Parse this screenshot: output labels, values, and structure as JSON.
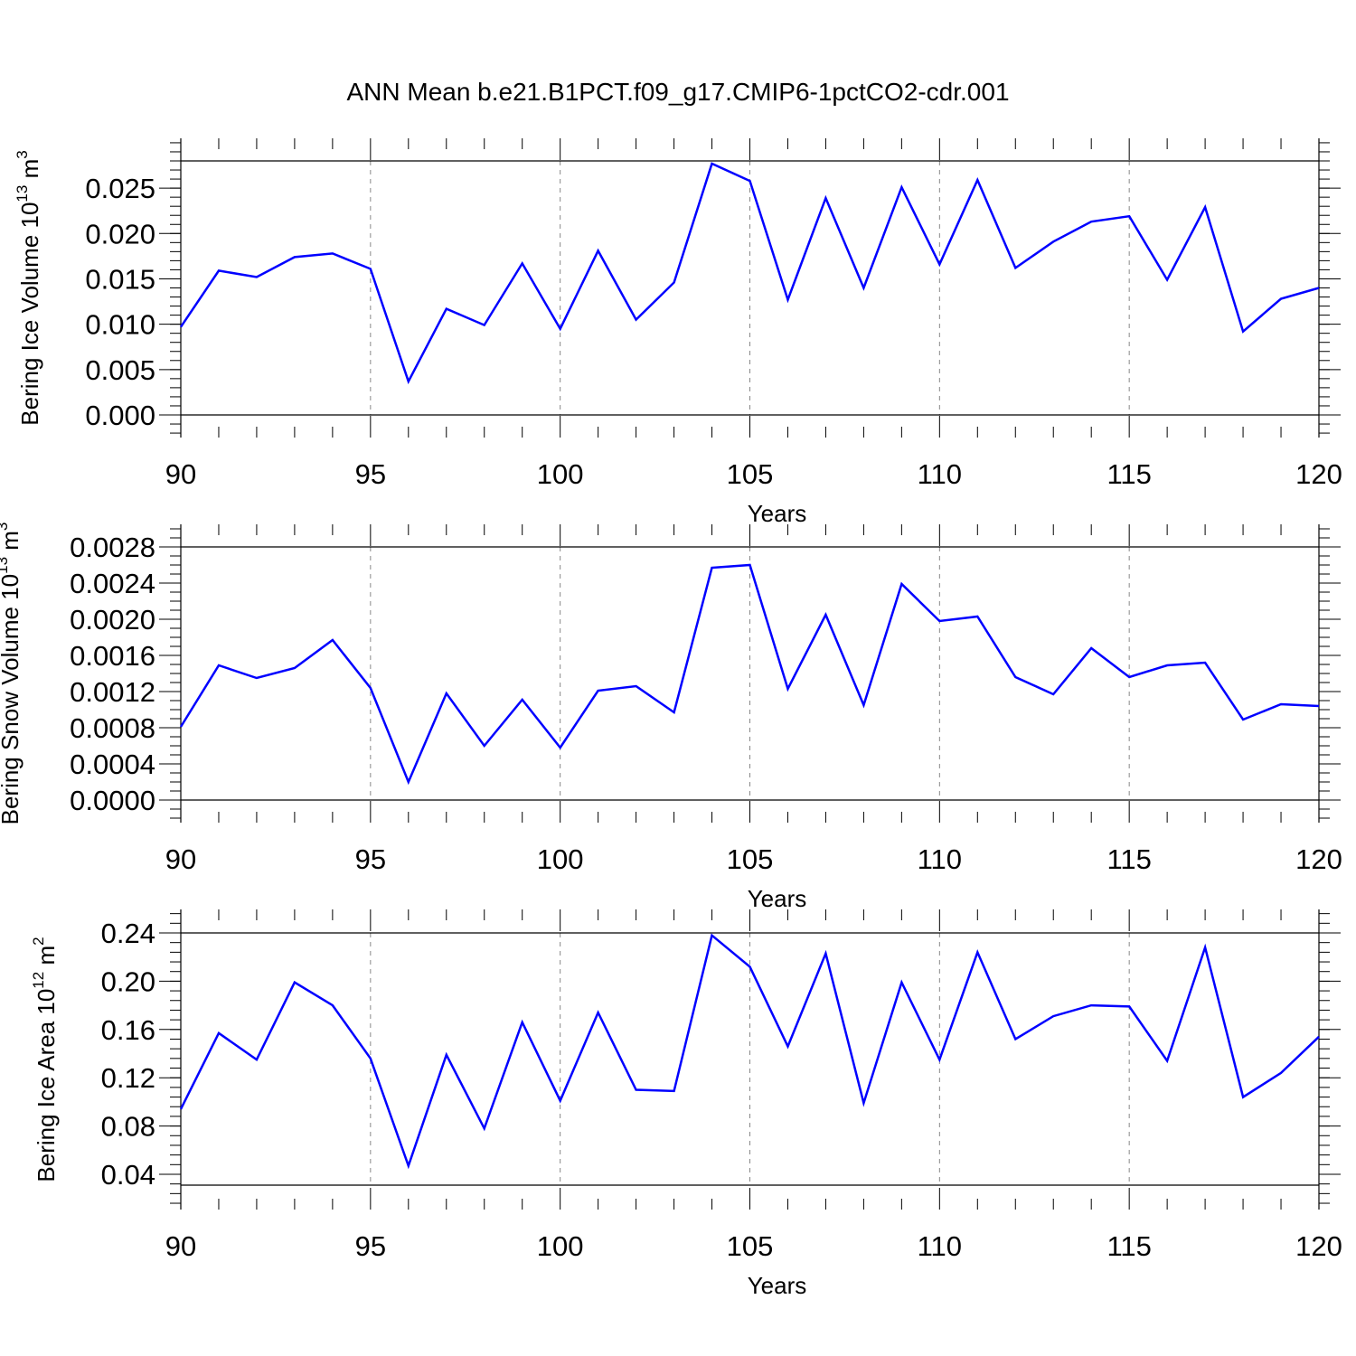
{
  "title": "ANN Mean b.e21.B1PCT.f09_g17.CMIP6-1pctCO2-cdr.001",
  "colors": {
    "series": "#0000ff",
    "axis": "#000000",
    "grid": "#888888"
  },
  "chart_data": [
    {
      "type": "line",
      "name": "ice-volume",
      "ylabel_main": "Bering Ice Volume 10",
      "ylabel_exp": "13",
      "ylabel_unit": " m",
      "ylabel_unit_exp": "3",
      "xlabel": "Years",
      "xlim": [
        90,
        120
      ],
      "ylim": [
        0.0,
        0.028
      ],
      "xticks": [
        90,
        95,
        100,
        105,
        110,
        115,
        120
      ],
      "xtick_labels": [
        "90",
        "95",
        "100",
        "105",
        "110",
        "115",
        "120"
      ],
      "yticks": [
        0.0,
        0.005,
        0.01,
        0.015,
        0.02,
        0.025
      ],
      "ytick_labels": [
        "0.000",
        "0.005",
        "0.010",
        "0.015",
        "0.020",
        "0.025"
      ],
      "yminor_step": 0.001,
      "grid": "vertical dashed at major x ticks",
      "x": [
        90,
        91,
        92,
        93,
        94,
        95,
        96,
        97,
        98,
        99,
        100,
        101,
        102,
        103,
        104,
        105,
        106,
        107,
        108,
        109,
        110,
        111,
        112,
        113,
        114,
        115,
        116,
        117,
        118,
        119,
        120
      ],
      "values": [
        0.0097,
        0.0159,
        0.0152,
        0.0174,
        0.0178,
        0.0161,
        0.0037,
        0.0117,
        0.0099,
        0.0167,
        0.0095,
        0.0181,
        0.0105,
        0.0146,
        0.0277,
        0.0258,
        0.0127,
        0.0239,
        0.014,
        0.0251,
        0.0166,
        0.0259,
        0.0162,
        0.0191,
        0.0213,
        0.0219,
        0.0149,
        0.0229,
        0.0092,
        0.0128,
        0.014
      ]
    },
    {
      "type": "line",
      "name": "snow-volume",
      "ylabel_main": "Bering Snow Volume 10",
      "ylabel_exp": "13",
      "ylabel_unit": " m",
      "ylabel_unit_exp": "3",
      "xlabel": "Years",
      "xlim": [
        90,
        120
      ],
      "ylim": [
        0.0,
        0.0028
      ],
      "xticks": [
        90,
        95,
        100,
        105,
        110,
        115,
        120
      ],
      "xtick_labels": [
        "90",
        "95",
        "100",
        "105",
        "110",
        "115",
        "120"
      ],
      "yticks": [
        0.0,
        0.0004,
        0.0008,
        0.0012,
        0.0016,
        0.002,
        0.0024,
        0.0028
      ],
      "ytick_labels": [
        "0.0000",
        "0.0004",
        "0.0008",
        "0.0012",
        "0.0016",
        "0.0020",
        "0.0024",
        "0.0028"
      ],
      "yminor_step": 0.0001,
      "grid": "vertical dashed at major x ticks",
      "x": [
        90,
        91,
        92,
        93,
        94,
        95,
        96,
        97,
        98,
        99,
        100,
        101,
        102,
        103,
        104,
        105,
        106,
        107,
        108,
        109,
        110,
        111,
        112,
        113,
        114,
        115,
        116,
        117,
        118,
        119,
        120
      ],
      "values": [
        0.00081,
        0.00149,
        0.00135,
        0.00146,
        0.00177,
        0.00124,
        0.0002,
        0.00118,
        0.0006,
        0.00111,
        0.00058,
        0.00121,
        0.00126,
        0.00097,
        0.00257,
        0.0026,
        0.00123,
        0.00205,
        0.00105,
        0.00239,
        0.00198,
        0.00203,
        0.00136,
        0.00117,
        0.00168,
        0.00136,
        0.00149,
        0.00152,
        0.00089,
        0.00106,
        0.00104
      ]
    },
    {
      "type": "line",
      "name": "ice-area",
      "ylabel_main": "Bering Ice Area 10",
      "ylabel_exp": "12",
      "ylabel_unit": " m",
      "ylabel_unit_exp": "2",
      "xlabel": "Years",
      "xlim": [
        90,
        120
      ],
      "ylim": [
        0.031,
        0.24
      ],
      "xticks": [
        90,
        95,
        100,
        105,
        110,
        115,
        120
      ],
      "xtick_labels": [
        "90",
        "95",
        "100",
        "105",
        "110",
        "115",
        "120"
      ],
      "yticks": [
        0.04,
        0.08,
        0.12,
        0.16,
        0.2,
        0.24
      ],
      "ytick_labels": [
        "0.04",
        "0.08",
        "0.12",
        "0.16",
        "0.20",
        "0.24"
      ],
      "yminor_step": 0.008,
      "grid": "vertical dashed at major x ticks",
      "x": [
        90,
        91,
        92,
        93,
        94,
        95,
        96,
        97,
        98,
        99,
        100,
        101,
        102,
        103,
        104,
        105,
        106,
        107,
        108,
        109,
        110,
        111,
        112,
        113,
        114,
        115,
        116,
        117,
        118,
        119,
        120
      ],
      "values": [
        0.094,
        0.157,
        0.135,
        0.199,
        0.18,
        0.136,
        0.047,
        0.139,
        0.078,
        0.166,
        0.101,
        0.174,
        0.11,
        0.109,
        0.238,
        0.212,
        0.146,
        0.223,
        0.099,
        0.199,
        0.135,
        0.224,
        0.152,
        0.171,
        0.18,
        0.179,
        0.134,
        0.228,
        0.104,
        0.124,
        0.154
      ]
    }
  ]
}
